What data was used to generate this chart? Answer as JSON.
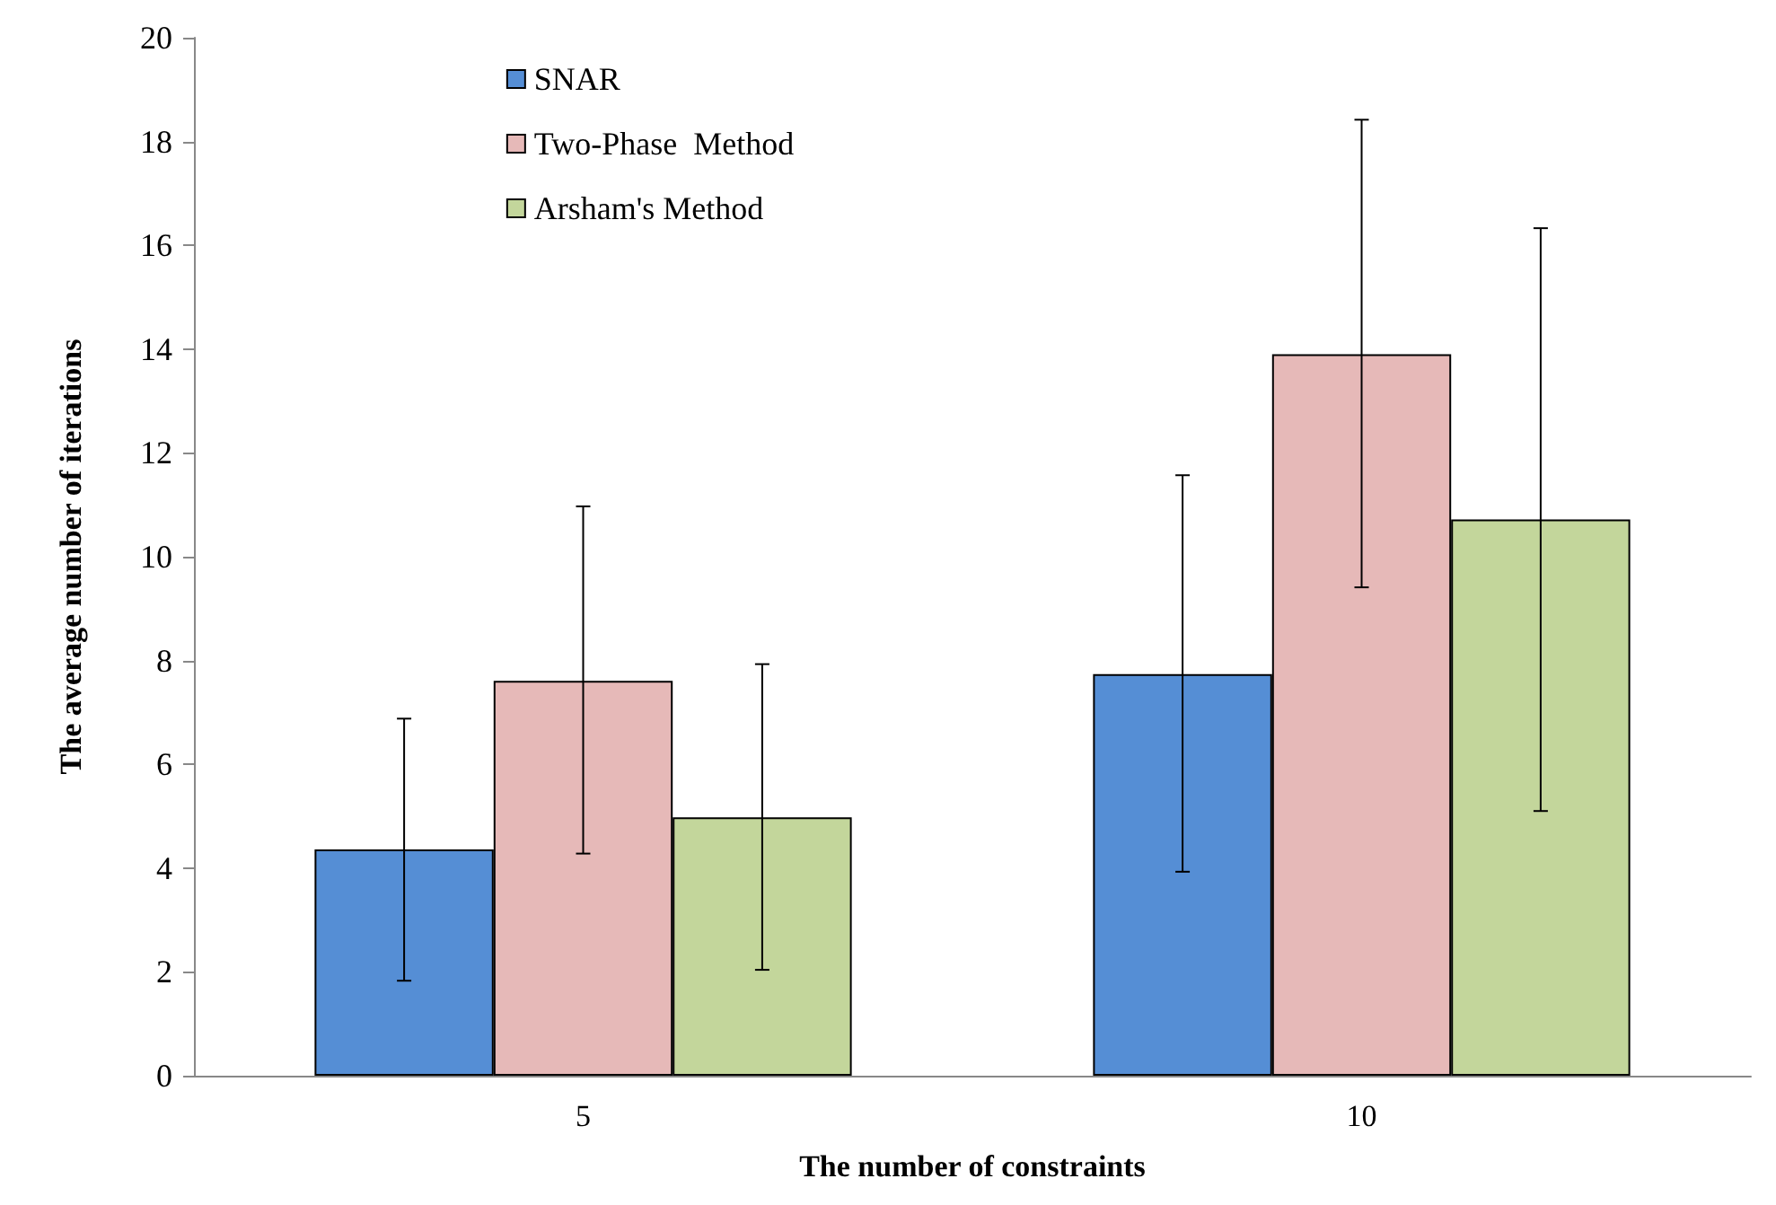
{
  "chart_data": {
    "type": "bar",
    "xlabel": "The number of constraints",
    "ylabel": "The average number of iterations",
    "categories": [
      "5",
      "10"
    ],
    "series": [
      {
        "name": "SNAR",
        "color": "#558ed5",
        "values": [
          4.36,
          7.74
        ],
        "errors": [
          [
            1.83,
            6.88
          ],
          [
            3.93,
            11.57
          ]
        ]
      },
      {
        "name": "Two-Phase  Method",
        "color": "#e6b9b8",
        "values": [
          7.61,
          13.9
        ],
        "errors": [
          [
            4.28,
            10.97
          ],
          [
            9.41,
            18.42
          ]
        ]
      },
      {
        "name": "Arsham's Method",
        "color": "#c3d69b",
        "values": [
          4.98,
          10.72
        ],
        "errors": [
          [
            2.04,
            7.93
          ],
          [
            5.1,
            16.33
          ]
        ]
      }
    ],
    "ylim": [
      0,
      20
    ],
    "yticks": [
      0,
      2,
      4,
      6,
      8,
      10,
      12,
      14,
      16,
      18,
      20
    ],
    "grid": false,
    "legend": "top left"
  }
}
